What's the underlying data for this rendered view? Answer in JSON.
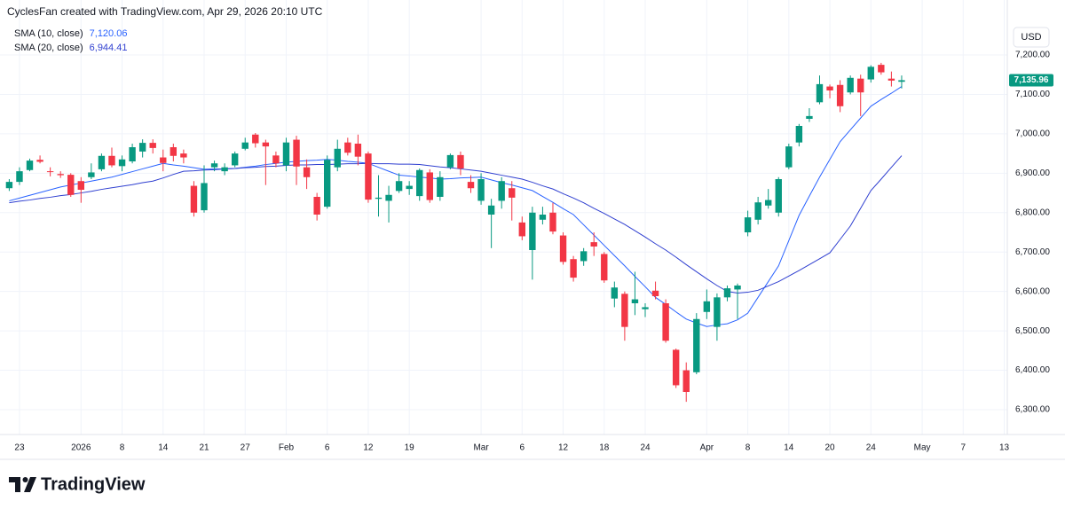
{
  "header": {
    "attribution": "CyclesFan created with TradingView.com, Apr 29, 2026 20:10 UTC"
  },
  "footer": {
    "logo": "TradingView"
  },
  "chart_data": {
    "type": "candlestick",
    "currency": "USD",
    "up_color": "#089981",
    "down_color": "#f23645",
    "grid": true,
    "xlim": [
      -0.9,
      97.3
    ],
    "ylim": [
      6237,
      7272
    ],
    "xticks": [
      {
        "value": 1,
        "label": "23"
      },
      {
        "value": 7,
        "label": "2026"
      },
      {
        "value": 11,
        "label": "8"
      },
      {
        "value": 15,
        "label": "14"
      },
      {
        "value": 19,
        "label": "21"
      },
      {
        "value": 23,
        "label": "27"
      },
      {
        "value": 27,
        "label": "Feb"
      },
      {
        "value": 31,
        "label": "6"
      },
      {
        "value": 35,
        "label": "12"
      },
      {
        "value": 39,
        "label": "19"
      },
      {
        "value": 46,
        "label": "Mar"
      },
      {
        "value": 50,
        "label": "6"
      },
      {
        "value": 54,
        "label": "12"
      },
      {
        "value": 58,
        "label": "18"
      },
      {
        "value": 62,
        "label": "24"
      },
      {
        "value": 68,
        "label": "Apr"
      },
      {
        "value": 72,
        "label": "8"
      },
      {
        "value": 76,
        "label": "14"
      },
      {
        "value": 80,
        "label": "20"
      },
      {
        "value": 84,
        "label": "24"
      },
      {
        "value": 89,
        "label": "May"
      },
      {
        "value": 93,
        "label": "7"
      },
      {
        "value": 97,
        "label": "13"
      }
    ],
    "yticks": [
      {
        "value": 6300,
        "label": "6,300.00"
      },
      {
        "value": 6400,
        "label": "6,400.00"
      },
      {
        "value": 6500,
        "label": "6,500.00"
      },
      {
        "value": 6600,
        "label": "6,600.00"
      },
      {
        "value": 6700,
        "label": "6,700.00"
      },
      {
        "value": 6800,
        "label": "6,800.00"
      },
      {
        "value": 6900,
        "label": "6,900.00"
      },
      {
        "value": 7000,
        "label": "7,000.00"
      },
      {
        "value": 7100,
        "label": "7,100.00"
      },
      {
        "value": 7200,
        "label": "7,200.00"
      }
    ],
    "open": [
      6862,
      6878,
      6908,
      6934,
      6905,
      6898,
      6896,
      6880,
      6890,
      6910,
      6944,
      6918,
      6930,
      6955,
      6977,
      6940,
      6966,
      6950,
      6868,
      6806,
      6915,
      6905,
      6920,
      6962,
      6998,
      6978,
      6945,
      6920,
      6985,
      6915,
      6840,
      6815,
      6915,
      6978,
      6975,
      6950,
      6835,
      6830,
      6855,
      6860,
      6842,
      6902,
      6840,
      6915,
      6946,
      6878,
      6830,
      6795,
      6830,
      6862,
      6775,
      6705,
      6782,
      6800,
      6742,
      6682,
      6677,
      6725,
      6695,
      6582,
      6594,
      6570,
      6555,
      6602,
      6570,
      6452,
      6400,
      6395,
      6548,
      6510,
      6585,
      6605,
      6750,
      6782,
      6818,
      6800,
      6915,
      6978,
      7038,
      7080,
      7120,
      7124,
      7105,
      7140,
      7138,
      7175,
      7140,
      7132
    ],
    "high": [
      6885,
      6915,
      6937,
      6945,
      6915,
      6905,
      6900,
      6890,
      6925,
      6950,
      6965,
      6945,
      6975,
      6986,
      6986,
      6960,
      6975,
      6960,
      6880,
      6920,
      6932,
      6925,
      6955,
      6990,
      7002,
      6985,
      6955,
      6990,
      6995,
      6935,
      6850,
      6945,
      6985,
      6990,
      6998,
      6955,
      6895,
      6868,
      6900,
      6880,
      6912,
      6910,
      6905,
      6950,
      6955,
      6895,
      6900,
      6835,
      6890,
      6880,
      6790,
      6815,
      6815,
      6825,
      6750,
      6690,
      6710,
      6750,
      6700,
      6625,
      6600,
      6650,
      6570,
      6625,
      6580,
      6455,
      6420,
      6545,
      6605,
      6595,
      6615,
      6620,
      6805,
      6840,
      6860,
      6890,
      6975,
      7025,
      7065,
      7148,
      7125,
      7136,
      7148,
      7150,
      7174,
      7180,
      7158,
      7148
    ],
    "low": [
      6855,
      6870,
      6905,
      6925,
      6892,
      6888,
      6840,
      6825,
      6885,
      6905,
      6915,
      6905,
      6925,
      6940,
      6950,
      6905,
      6930,
      6925,
      6790,
      6800,
      6905,
      6895,
      6915,
      6958,
      6965,
      6870,
      6915,
      6905,
      6870,
      6860,
      6780,
      6810,
      6905,
      6945,
      6920,
      6825,
      6790,
      6775,
      6850,
      6845,
      6830,
      6825,
      6830,
      6910,
      6895,
      6850,
      6820,
      6710,
      6810,
      6780,
      6730,
      6630,
      6770,
      6745,
      6668,
      6625,
      6665,
      6690,
      6622,
      6560,
      6475,
      6540,
      6535,
      6580,
      6470,
      6355,
      6320,
      6390,
      6530,
      6475,
      6575,
      6530,
      6740,
      6770,
      6810,
      6790,
      6910,
      6968,
      7030,
      7075,
      7090,
      7055,
      7100,
      7045,
      7130,
      7150,
      7120,
      7115
    ],
    "close": [
      6878,
      6905,
      6932,
      6929,
      6903,
      6895,
      6845,
      6858,
      6902,
      6944,
      6920,
      6935,
      6966,
      6977,
      6964,
      6926,
      6944,
      6940,
      6800,
      6875,
      6925,
      6915,
      6950,
      6978,
      6976,
      6968,
      6925,
      6978,
      6917,
      6890,
      6795,
      6934,
      6962,
      6952,
      6942,
      6833,
      6838,
      6845,
      6880,
      6868,
      6908,
      6832,
      6890,
      6946,
      6912,
      6862,
      6885,
      6818,
      6880,
      6838,
      6740,
      6800,
      6795,
      6752,
      6675,
      6635,
      6702,
      6714,
      6628,
      6610,
      6510,
      6580,
      6560,
      6588,
      6475,
      6362,
      6345,
      6530,
      6575,
      6585,
      6608,
      6615,
      6788,
      6826,
      6832,
      6885,
      6968,
      7020,
      7045,
      7126,
      7110,
      7070,
      7142,
      7105,
      7170,
      7156,
      7135,
      7135.96
    ],
    "last_price_label": "7,135.96",
    "indicators": [
      {
        "name": "SMA (10, close)",
        "last_value_label": "7,120.06",
        "color": "#2962ff",
        "values": [
          6830,
          6837,
          6844,
          6851,
          6858,
          6865,
          6870,
          6875,
          6880,
          6885,
          6890,
          6897,
          6904,
          6911,
          6918,
          6925,
          6921,
          6918,
          6914,
          6910,
          6911,
          6911,
          6912,
          6915,
          6918,
          6922,
          6925,
          6928,
          6930,
          6932,
          6933,
          6935,
          6933,
          6930,
          6928,
          6925,
          6915,
          6905,
          6895,
          6893,
          6890,
          6888,
          6885,
          6886,
          6888,
          6889,
          6890,
          6883,
          6876,
          6870,
          6863,
          6856,
          6841,
          6826,
          6810,
          6795,
          6769,
          6743,
          6717,
          6691,
          6665,
          6638,
          6612,
          6585,
          6567,
          6548,
          6530,
          6520,
          6511,
          6515,
          6518,
          6528,
          6545,
          6585,
          6625,
          6665,
          6729,
          6793,
          6842,
          6890,
          6935,
          6980,
          7010,
          7040,
          7070,
          7087,
          7103,
          7120.06
        ]
      },
      {
        "name": "SMA (20, close)",
        "last_value_label": "6,944.41",
        "color": "#2f3fd0",
        "values": [
          6825,
          6829,
          6832,
          6836,
          6839,
          6843,
          6846,
          6850,
          6854,
          6859,
          6863,
          6867,
          6871,
          6876,
          6880,
          6888,
          6897,
          6905,
          6906,
          6908,
          6909,
          6911,
          6912,
          6914,
          6915,
          6917,
          6918,
          6920,
          6921,
          6921,
          6922,
          6922,
          6923,
          6924,
          6924,
          6925,
          6924,
          6924,
          6923,
          6923,
          6922,
          6919,
          6916,
          6914,
          6911,
          6908,
          6905,
          6900,
          6895,
          6890,
          6885,
          6877,
          6868,
          6860,
          6848,
          6837,
          6825,
          6811,
          6798,
          6784,
          6770,
          6754,
          6738,
          6721,
          6705,
          6687,
          6668,
          6650,
          6632,
          6615,
          6600,
          6596,
          6598,
          6603,
          6614,
          6625,
          6639,
          6653,
          6668,
          6683,
          6698,
          6732,
          6766,
          6811,
          6856,
          6885,
          6915,
          6944.41
        ]
      }
    ]
  }
}
